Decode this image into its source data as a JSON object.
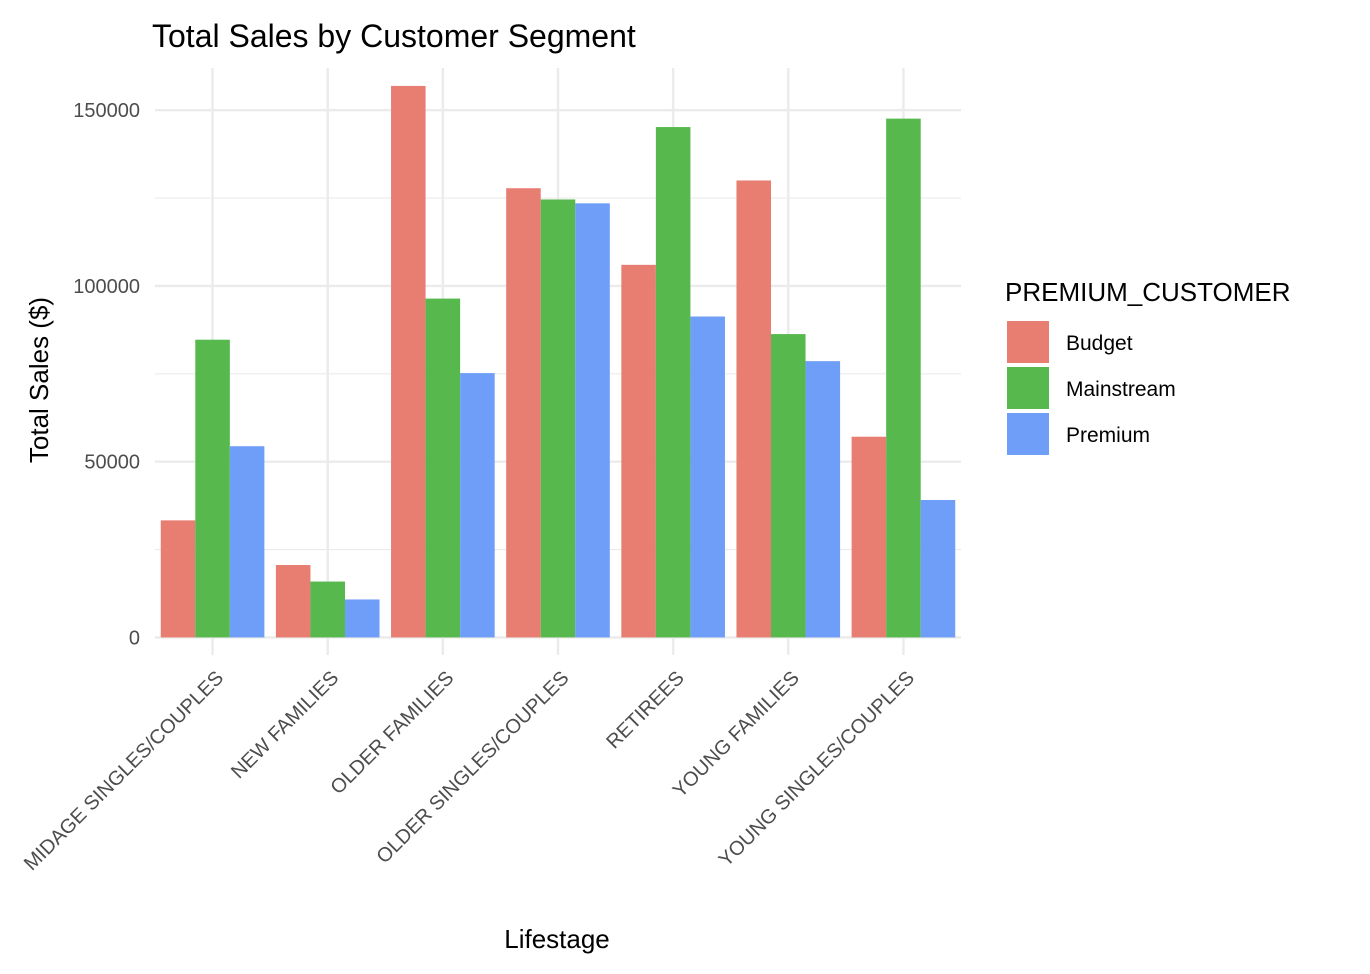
{
  "chart_data": {
    "type": "bar",
    "title": "Total Sales by Customer Segment",
    "xlabel": "Lifestage",
    "ylabel": "Total Sales ($)",
    "ylim": [
      -5000,
      162000
    ],
    "yticks": [
      0,
      50000,
      100000,
      150000
    ],
    "yticks_labels": [
      "0",
      "50000",
      "100000",
      "150000"
    ],
    "grid": true,
    "legend_title": "PREMIUM_CUSTOMER",
    "legend_position": "right",
    "categories": [
      "MIDAGE SINGLES/COUPLES",
      "NEW FAMILIES",
      "OLDER FAMILIES",
      "OLDER SINGLES/COUPLES",
      "RETIREES",
      "YOUNG FAMILIES",
      "YOUNG SINGLES/COUPLES"
    ],
    "series": [
      {
        "name": "Budget",
        "color": "#E87D72",
        "values": [
          33300,
          20600,
          156900,
          127800,
          106000,
          130000,
          57100
        ]
      },
      {
        "name": "Mainstream",
        "color": "#56B84D",
        "values": [
          84700,
          15900,
          96400,
          124600,
          145200,
          86300,
          147600
        ]
      },
      {
        "name": "Premium",
        "color": "#6F9EF8",
        "values": [
          54400,
          10800,
          75200,
          123500,
          91300,
          78600,
          39100
        ]
      }
    ]
  }
}
